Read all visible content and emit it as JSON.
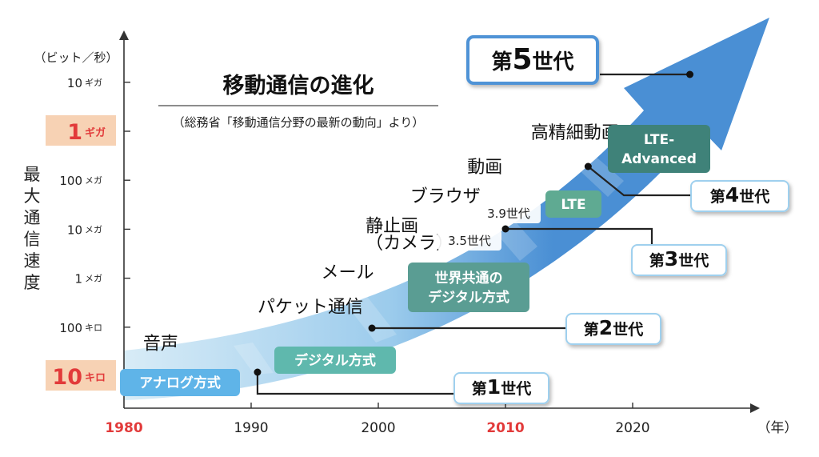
{
  "chart_data": {
    "type": "area",
    "title": "移動通信の進化",
    "subtitle": "（総務省「移動通信分野の最新の動向」より）",
    "ylabel": "最大通信速度",
    "y_unit": "（ビット／秒）",
    "x_unit": "（年）",
    "xlim": [
      1980,
      2030
    ],
    "x_ticks": [
      {
        "label": "1980",
        "value": 1980,
        "highlight": true
      },
      {
        "label": "1990",
        "value": 1990,
        "highlight": false
      },
      {
        "label": "2000",
        "value": 2000,
        "highlight": false
      },
      {
        "label": "2010",
        "value": 2010,
        "highlight": true
      },
      {
        "label": "2020",
        "value": 2020,
        "highlight": false
      }
    ],
    "y_ticks": [
      {
        "num": "10",
        "unit": "キロ",
        "level": 0,
        "highlight": true
      },
      {
        "num": "100",
        "unit": "キロ",
        "level": 1,
        "highlight": false
      },
      {
        "num": "1",
        "unit": "メガ",
        "level": 2,
        "highlight": false
      },
      {
        "num": "10",
        "unit": "メガ",
        "level": 3,
        "highlight": false
      },
      {
        "num": "100",
        "unit": "メガ",
        "level": 4,
        "highlight": false
      },
      {
        "num": "1",
        "unit": "ギガ",
        "level": 5,
        "highlight": true
      },
      {
        "num": "10",
        "unit": "ギガ",
        "level": 6,
        "highlight": false
      }
    ],
    "applications": [
      {
        "label": "音声",
        "year": 1981.5,
        "level": 0.55
      },
      {
        "label": "パケット通信",
        "year": 1990.5,
        "level": 1.3
      },
      {
        "label": "メール",
        "year": 1995.5,
        "level": 2.0
      },
      {
        "label": "静止画",
        "year": 1999,
        "level": 2.95
      },
      {
        "label": "（カメラ）",
        "year": 1999,
        "level": 2.6
      },
      {
        "label": "ブラウザ",
        "year": 2002.5,
        "level": 3.55
      },
      {
        "label": "動画",
        "year": 2007,
        "level": 4.15
      },
      {
        "label": "高精細動画",
        "year": 2012,
        "level": 4.85
      }
    ],
    "technologies": [
      {
        "label": "アナログ方式",
        "lines": [
          "アナログ方式"
        ],
        "year": 1984.6,
        "level": 0.08,
        "color": "#5fb4e8"
      },
      {
        "label": "デジタル方式",
        "lines": [
          "デジタル方式"
        ],
        "year": 1997.2,
        "level": 0.5,
        "color": "#5fb8ad"
      },
      {
        "label": "世界共通のデジタル方式",
        "lines": [
          "世界共通の",
          "デジタル方式"
        ],
        "year": 2006.5,
        "level": 2.0,
        "color": "#5a9d93"
      },
      {
        "label": "LTE",
        "lines": [
          "LTE"
        ],
        "year": 2012.5,
        "level": 3.75,
        "color": "#5faa92"
      },
      {
        "label": "LTE-Advanced",
        "lines": [
          "LTE-",
          "Advanced"
        ],
        "year": 2019.3,
        "level": 4.95,
        "color": "#3f8279"
      }
    ],
    "sub_labels": [
      {
        "label": "3.9世代",
        "year": 2005.2,
        "level": 3.8
      },
      {
        "label": "3.5世代",
        "year": 2004.0,
        "level": 3.16
      }
    ],
    "generations": [
      {
        "label": "第1世代",
        "prefix": "第",
        "num": "1",
        "suffix": "世代",
        "start_year": 1990.5,
        "start_level": 0.12
      },
      {
        "label": "第2世代",
        "prefix": "第",
        "num": "2",
        "suffix": "世代",
        "start_year": 1999.5,
        "start_level": 1.0
      },
      {
        "label": "第3世代",
        "prefix": "第",
        "num": "3",
        "suffix": "世代",
        "start_year": 2010,
        "start_level": 3.0
      },
      {
        "label": "第4世代",
        "prefix": "第",
        "num": "4",
        "suffix": "世代",
        "start_year": 2016.5,
        "start_level": 4.4
      },
      {
        "label": "第5世代",
        "prefix": "第",
        "num": "5",
        "suffix": "世代",
        "start_year": 2024.5,
        "start_level": 6.0
      }
    ]
  },
  "colors": {
    "band_light": "#d8ecf7",
    "band_mid": "#9bcbec",
    "band_dark": "#4a8fd4",
    "highlight_red": "#e23a3a",
    "highlight_bg": "#f7d2b4",
    "gen_border": "#9fd0ee",
    "g5_border": "#4f93d6"
  }
}
